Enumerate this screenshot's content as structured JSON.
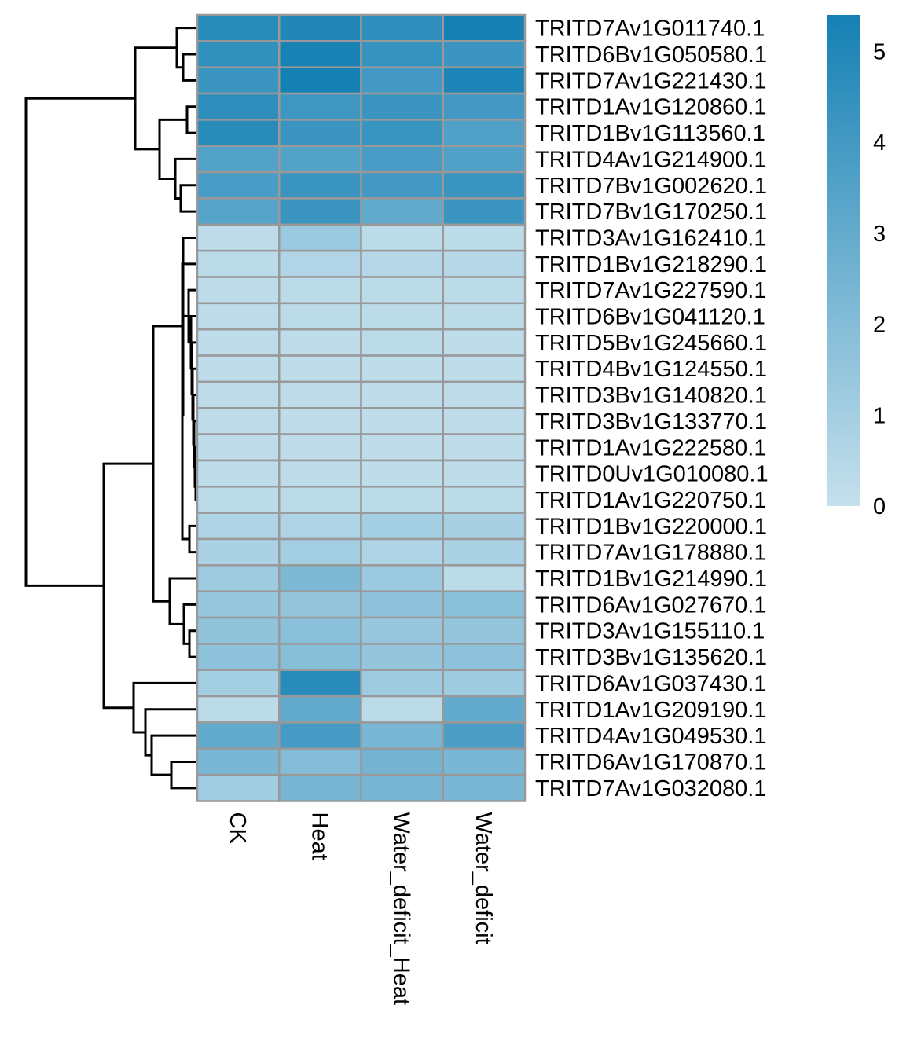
{
  "chart_data": {
    "type": "heatmap",
    "columns": [
      "CK",
      "Heat",
      "Water_deficit_Heat",
      "Water_deficit"
    ],
    "rows": [
      {
        "gene": "TRITD7Av1G011740.1",
        "values": [
          4.8,
          5.0,
          4.6,
          5.4
        ]
      },
      {
        "gene": "TRITD6Bv1G050580.1",
        "values": [
          4.5,
          5.3,
          4.4,
          4.2
        ]
      },
      {
        "gene": "TRITD7Av1G221430.1",
        "values": [
          4.2,
          5.4,
          4.0,
          5.2
        ]
      },
      {
        "gene": "TRITD1Av1G120860.1",
        "values": [
          4.6,
          4.1,
          4.2,
          4.0
        ]
      },
      {
        "gene": "TRITD1Bv1G113560.1",
        "values": [
          4.8,
          4.2,
          4.3,
          3.6
        ]
      },
      {
        "gene": "TRITD4Av1G214900.1",
        "values": [
          3.5,
          3.5,
          3.8,
          3.6
        ]
      },
      {
        "gene": "TRITD7Bv1G002620.1",
        "values": [
          3.8,
          4.3,
          4.0,
          4.3
        ]
      },
      {
        "gene": "TRITD7Bv1G170250.1",
        "values": [
          3.4,
          4.2,
          3.0,
          4.2
        ]
      },
      {
        "gene": "TRITD3Av1G162410.1",
        "values": [
          0.2,
          1.3,
          0.3,
          0.3
        ]
      },
      {
        "gene": "TRITD1Bv1G218290.1",
        "values": [
          0.3,
          0.6,
          0.5,
          0.5
        ]
      },
      {
        "gene": "TRITD7Av1G227590.1",
        "values": [
          0.2,
          0.3,
          0.3,
          0.3
        ]
      },
      {
        "gene": "TRITD6Bv1G041120.1",
        "values": [
          0.2,
          0.3,
          0.3,
          0.3
        ]
      },
      {
        "gene": "TRITD5Bv1G245660.1",
        "values": [
          0.2,
          0.2,
          0.3,
          0.2
        ]
      },
      {
        "gene": "TRITD4Bv1G124550.1",
        "values": [
          0.2,
          0.2,
          0.2,
          0.2
        ]
      },
      {
        "gene": "TRITD3Bv1G140820.1",
        "values": [
          0.2,
          0.2,
          0.2,
          0.2
        ]
      },
      {
        "gene": "TRITD3Bv1G133770.1",
        "values": [
          0.2,
          0.2,
          0.2,
          0.2
        ]
      },
      {
        "gene": "TRITD1Av1G222580.1",
        "values": [
          0.2,
          0.2,
          0.2,
          0.2
        ]
      },
      {
        "gene": "TRITD0Uv1G010080.1",
        "values": [
          0.2,
          0.2,
          0.2,
          0.2
        ]
      },
      {
        "gene": "TRITD1Av1G220750.1",
        "values": [
          0.3,
          0.3,
          0.3,
          0.3
        ]
      },
      {
        "gene": "TRITD1Bv1G220000.1",
        "values": [
          0.7,
          0.7,
          1.0,
          0.9
        ]
      },
      {
        "gene": "TRITD7Av1G178880.1",
        "values": [
          0.8,
          1.0,
          0.7,
          0.8
        ]
      },
      {
        "gene": "TRITD1Bv1G214990.1",
        "values": [
          1.2,
          2.2,
          1.3,
          0.3
        ]
      },
      {
        "gene": "TRITD6Av1G027670.1",
        "values": [
          1.4,
          1.5,
          1.7,
          1.8
        ]
      },
      {
        "gene": "TRITD3Av1G155110.1",
        "values": [
          1.6,
          1.8,
          1.4,
          1.5
        ]
      },
      {
        "gene": "TRITD3Bv1G135620.1",
        "values": [
          1.7,
          1.9,
          1.5,
          1.7
        ]
      },
      {
        "gene": "TRITD6Av1G037430.1",
        "values": [
          1.0,
          4.8,
          1.2,
          1.2
        ]
      },
      {
        "gene": "TRITD1Av1G209190.1",
        "values": [
          0.3,
          3.0,
          0.3,
          3.0
        ]
      },
      {
        "gene": "TRITD4Av1G049530.1",
        "values": [
          3.0,
          3.9,
          2.3,
          3.7
        ]
      },
      {
        "gene": "TRITD6Av1G170870.1",
        "values": [
          2.3,
          2.0,
          2.5,
          2.3
        ]
      },
      {
        "gene": "TRITD7Av1G032080.1",
        "values": [
          1.1,
          2.4,
          2.4,
          2.3
        ]
      }
    ],
    "color_scale": {
      "min": 0,
      "max": 5.4,
      "ticks": [
        0,
        1,
        2,
        3,
        4,
        5
      ],
      "low_color": "#c5e0ec",
      "high_color": "#1580b4"
    },
    "cell_border_color": "#999999",
    "row_dendrogram": true,
    "col_dendrogram": false,
    "legend_position": "right"
  }
}
